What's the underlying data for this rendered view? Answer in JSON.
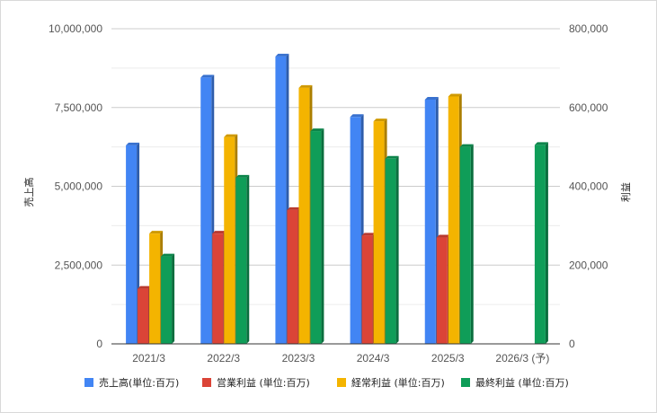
{
  "chart_data": {
    "type": "bar",
    "categories": [
      "2021/3",
      "2022/3",
      "2023/3",
      "2024/3",
      "2025/3",
      "2026/3 (予)"
    ],
    "y_left": {
      "label": "売上高",
      "ylim": [
        0,
        10000000
      ],
      "ticks": [
        "0",
        "2,500,000",
        "5,000,000",
        "7,500,000",
        "10,000,000"
      ]
    },
    "y_right": {
      "label": "利益",
      "ylim": [
        0,
        800000
      ],
      "ticks": [
        "0",
        "200,000",
        "400,000",
        "600,000",
        "800,000"
      ]
    },
    "grid": true,
    "legend_position": "bottom",
    "series": [
      {
        "name": "売上高(単位:百万)",
        "axis": "left",
        "color": "#4285f4",
        "values": [
          6300000,
          8450000,
          9120000,
          7200000,
          7750000,
          null
        ]
      },
      {
        "name": "営業利益 (単位:百万)",
        "axis": "right",
        "color": "#db4437",
        "values": [
          140000,
          280000,
          340000,
          275000,
          270000,
          null
        ]
      },
      {
        "name": "経常利益 (単位:百万)",
        "axis": "right",
        "color": "#f4b400",
        "values": [
          280000,
          525000,
          650000,
          565000,
          628000,
          null
        ]
      },
      {
        "name": "最終利益 (単位:百万)",
        "axis": "right",
        "color": "#0f9d58",
        "values": [
          222000,
          422000,
          540000,
          470000,
          500000,
          505000
        ]
      }
    ]
  }
}
